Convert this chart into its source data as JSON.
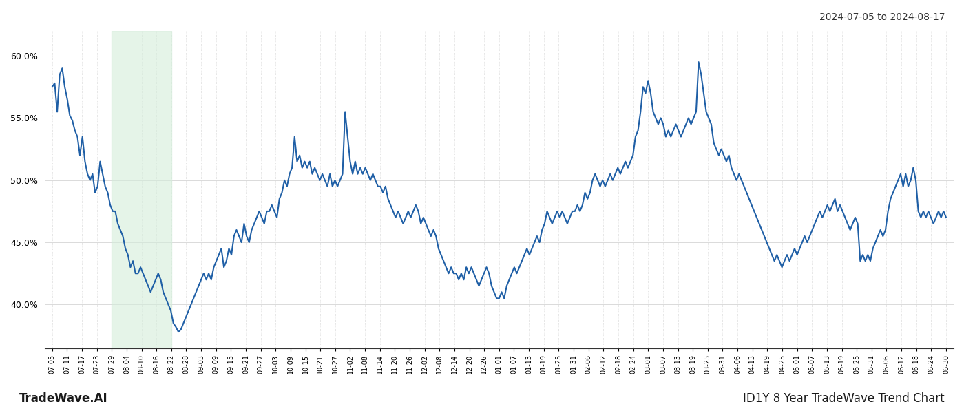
{
  "title_top_right": "2024-07-05 to 2024-08-17",
  "label_bottom_left": "TradeWave.AI",
  "label_bottom_right": "ID1Y 8 Year TradeWave Trend Chart",
  "line_color": "#1f5fa6",
  "line_width": 1.5,
  "highlight_color": "#d4edda",
  "highlight_alpha": 0.6,
  "background_color": "#ffffff",
  "grid_color": "#cccccc",
  "ylim_min": 36.5,
  "ylim_max": 62.0,
  "yticks": [
    40.0,
    45.0,
    50.0,
    55.0,
    60.0
  ],
  "x_labels": [
    "07-05",
    "07-11",
    "07-17",
    "07-23",
    "07-29",
    "08-04",
    "08-10",
    "08-16",
    "08-22",
    "08-28",
    "09-03",
    "09-09",
    "09-15",
    "09-21",
    "09-27",
    "10-03",
    "10-09",
    "10-15",
    "10-21",
    "10-27",
    "11-02",
    "11-08",
    "11-14",
    "11-20",
    "11-26",
    "12-02",
    "12-08",
    "12-14",
    "12-20",
    "12-26",
    "01-01",
    "01-07",
    "01-13",
    "01-19",
    "01-25",
    "01-31",
    "02-06",
    "02-12",
    "02-18",
    "02-24",
    "03-01",
    "03-07",
    "03-13",
    "03-19",
    "03-25",
    "03-31",
    "04-06",
    "04-13",
    "04-19",
    "04-25",
    "05-01",
    "05-07",
    "05-13",
    "05-19",
    "05-25",
    "05-31",
    "06-06",
    "06-12",
    "06-18",
    "06-24",
    "06-30"
  ],
  "highlight_start_label": "07-29",
  "highlight_end_label": "08-22",
  "values": [
    57.5,
    57.8,
    55.5,
    58.5,
    59.0,
    57.5,
    56.5,
    55.2,
    54.8,
    54.0,
    53.5,
    52.0,
    53.5,
    51.5,
    50.5,
    50.0,
    50.5,
    49.0,
    49.5,
    51.5,
    50.5,
    49.5,
    49.0,
    48.0,
    47.5,
    47.5,
    46.5,
    46.0,
    45.5,
    44.5,
    44.0,
    43.0,
    43.5,
    42.5,
    42.5,
    43.0,
    42.5,
    42.0,
    41.5,
    41.0,
    41.5,
    42.0,
    42.5,
    42.0,
    41.0,
    40.5,
    40.0,
    39.5,
    38.5,
    38.2,
    37.8,
    38.0,
    38.5,
    39.0,
    39.5,
    40.0,
    40.5,
    41.0,
    41.5,
    42.0,
    42.5,
    42.0,
    42.5,
    42.0,
    43.0,
    43.5,
    44.0,
    44.5,
    43.0,
    43.5,
    44.5,
    44.0,
    45.5,
    46.0,
    45.5,
    45.0,
    46.5,
    45.5,
    45.0,
    46.0,
    46.5,
    47.0,
    47.5,
    47.0,
    46.5,
    47.5,
    47.5,
    48.0,
    47.5,
    47.0,
    48.5,
    49.0,
    50.0,
    49.5,
    50.5,
    51.0,
    53.5,
    51.5,
    52.0,
    51.0,
    51.5,
    51.0,
    51.5,
    50.5,
    51.0,
    50.5,
    50.0,
    50.5,
    50.0,
    49.5,
    50.5,
    49.5,
    50.0,
    49.5,
    50.0,
    50.5,
    55.5,
    53.5,
    51.5,
    50.5,
    51.5,
    50.5,
    51.0,
    50.5,
    51.0,
    50.5,
    50.0,
    50.5,
    50.0,
    49.5,
    49.5,
    49.0,
    49.5,
    48.5,
    48.0,
    47.5,
    47.0,
    47.5,
    47.0,
    46.5,
    47.0,
    47.5,
    47.0,
    47.5,
    48.0,
    47.5,
    46.5,
    47.0,
    46.5,
    46.0,
    45.5,
    46.0,
    45.5,
    44.5,
    44.0,
    43.5,
    43.0,
    42.5,
    43.0,
    42.5,
    42.5,
    42.0,
    42.5,
    42.0,
    43.0,
    42.5,
    43.0,
    42.5,
    42.0,
    41.5,
    42.0,
    42.5,
    43.0,
    42.5,
    41.5,
    41.0,
    40.5,
    40.5,
    41.0,
    40.5,
    41.5,
    42.0,
    42.5,
    43.0,
    42.5,
    43.0,
    43.5,
    44.0,
    44.5,
    44.0,
    44.5,
    45.0,
    45.5,
    45.0,
    46.0,
    46.5,
    47.5,
    47.0,
    46.5,
    47.0,
    47.5,
    47.0,
    47.5,
    47.0,
    46.5,
    47.0,
    47.5,
    47.5,
    48.0,
    47.5,
    48.0,
    49.0,
    48.5,
    49.0,
    50.0,
    50.5,
    50.0,
    49.5,
    50.0,
    49.5,
    50.0,
    50.5,
    50.0,
    50.5,
    51.0,
    50.5,
    51.0,
    51.5,
    51.0,
    51.5,
    52.0,
    53.5,
    54.0,
    55.5,
    57.5,
    57.0,
    58.0,
    57.0,
    55.5,
    55.0,
    54.5,
    55.0,
    54.5,
    53.5,
    54.0,
    53.5,
    54.0,
    54.5,
    54.0,
    53.5,
    54.0,
    54.5,
    55.0,
    54.5,
    55.0,
    55.5,
    59.5,
    58.5,
    57.0,
    55.5,
    55.0,
    54.5,
    53.0,
    52.5,
    52.0,
    52.5,
    52.0,
    51.5,
    52.0,
    51.0,
    50.5,
    50.0,
    50.5,
    50.0,
    49.5,
    49.0,
    48.5,
    48.0,
    47.5,
    47.0,
    46.5,
    46.0,
    45.5,
    45.0,
    44.5,
    44.0,
    43.5,
    44.0,
    43.5,
    43.0,
    43.5,
    44.0,
    43.5,
    44.0,
    44.5,
    44.0,
    44.5,
    45.0,
    45.5,
    45.0,
    45.5,
    46.0,
    46.5,
    47.0,
    47.5,
    47.0,
    47.5,
    48.0,
    47.5,
    48.0,
    48.5,
    47.5,
    48.0,
    47.5,
    47.0,
    46.5,
    46.0,
    46.5,
    47.0,
    46.5,
    43.5,
    44.0,
    43.5,
    44.0,
    43.5,
    44.5,
    45.0,
    45.5,
    46.0,
    45.5,
    46.0,
    47.5,
    48.5,
    49.0,
    49.5,
    50.0,
    50.5,
    49.5,
    50.5,
    49.5,
    50.0,
    51.0,
    50.0,
    47.5,
    47.0,
    47.5,
    47.0,
    47.5,
    47.0,
    46.5,
    47.0,
    47.5,
    47.0,
    47.5,
    47.0
  ]
}
